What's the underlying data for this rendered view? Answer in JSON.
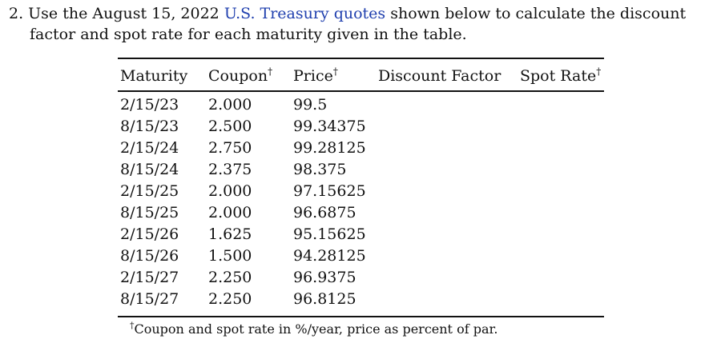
{
  "question": {
    "line1_before": "2. Use the August 15, 2022 ",
    "link_text": "U.S. Treasury quotes",
    "line1_after": " shown below to calculate the discount",
    "line2": "factor and spot rate for each maturity given in the table."
  },
  "colors": {
    "link": "#1f3fae",
    "text": "#111111"
  },
  "table": {
    "headers": {
      "maturity": "Maturity",
      "coupon": "Coupon",
      "price": "Price",
      "discount_factor": "Discount Factor",
      "spot_rate": "Spot Rate"
    },
    "dagger": "†",
    "rows": [
      {
        "maturity": "2/15/23",
        "coupon": "2.000",
        "price": "99.5"
      },
      {
        "maturity": "8/15/23",
        "coupon": "2.500",
        "price": "99.34375"
      },
      {
        "maturity": "2/15/24",
        "coupon": "2.750",
        "price": "99.28125"
      },
      {
        "maturity": "8/15/24",
        "coupon": "2.375",
        "price": "98.375"
      },
      {
        "maturity": "2/15/25",
        "coupon": "2.000",
        "price": "97.15625"
      },
      {
        "maturity": "8/15/25",
        "coupon": "2.000",
        "price": "96.6875"
      },
      {
        "maturity": "2/15/26",
        "coupon": "1.625",
        "price": "95.15625"
      },
      {
        "maturity": "8/15/26",
        "coupon": "1.500",
        "price": "94.28125"
      },
      {
        "maturity": "2/15/27",
        "coupon": "2.250",
        "price": "96.9375"
      },
      {
        "maturity": "8/15/27",
        "coupon": "2.250",
        "price": "96.8125"
      }
    ]
  },
  "footnote": {
    "mark": "†",
    "text": "Coupon and spot rate in %/year, price as percent of par."
  }
}
